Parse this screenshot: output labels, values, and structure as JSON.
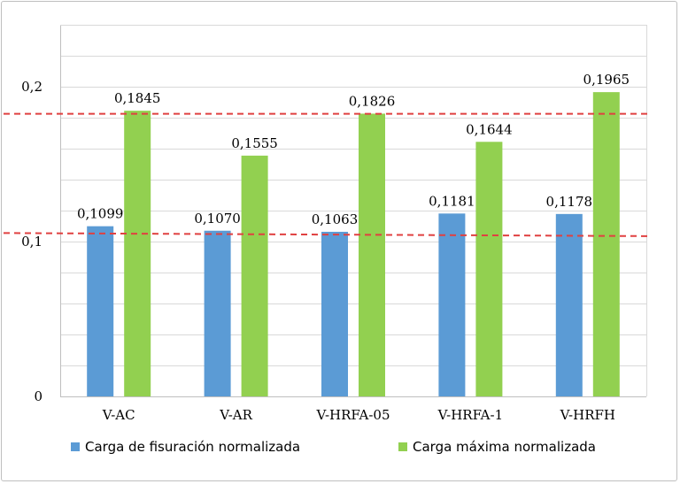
{
  "chart_data": {
    "type": "bar",
    "categories": [
      "V-AC",
      "V-AR",
      "V-HRFA-05",
      "V-HRFA-1",
      "V-HRFH"
    ],
    "series": [
      {
        "name": "Carga de fisuración normalizada",
        "color": "#5b9bd5",
        "values": [
          0.1099,
          0.107,
          0.1063,
          0.1181,
          0.1178
        ],
        "labels": [
          "0,1099",
          "0,1070",
          "0,1063",
          "0,1181",
          "0,1178"
        ]
      },
      {
        "name": "Carga máxima normalizada",
        "color": "#92d050",
        "values": [
          0.1845,
          0.1555,
          0.1826,
          0.1644,
          0.1965
        ],
        "labels": [
          "0,1845",
          "0,1555",
          "0,1826",
          "0,1644",
          "0,1965"
        ]
      }
    ],
    "ylim": [
      0,
      0.24
    ],
    "yticks": [
      0,
      0.1,
      0.2
    ],
    "ytick_labels": [
      "0",
      "0,1",
      "0,2"
    ],
    "grid": true,
    "legend_position": "bottom",
    "reference_lines": [
      {
        "style": "dashed",
        "color": "#e04040",
        "from": 0.1825,
        "to": 0.1825
      },
      {
        "style": "dashed",
        "color": "#e04040",
        "from": 0.1055,
        "to": 0.1035
      }
    ],
    "title": "",
    "xlabel": "",
    "ylabel": ""
  }
}
